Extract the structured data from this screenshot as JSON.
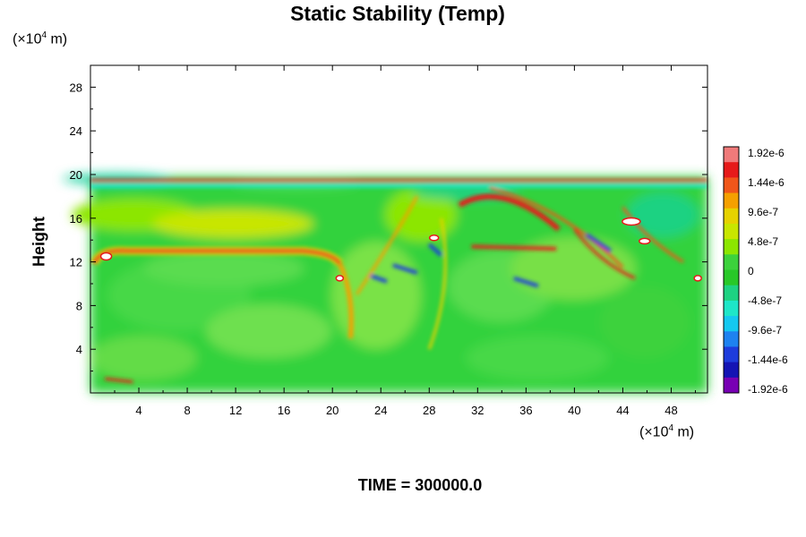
{
  "chart_data": {
    "type": "heatmap",
    "title": "Static Stability (Temp)",
    "ylabel": "Height",
    "xlabel": "",
    "x_unit": {
      "prefix": "(×10",
      "exp": "4",
      "suffix": " m)"
    },
    "y_unit": {
      "prefix": "(×10",
      "exp": "4",
      "suffix": " m)"
    },
    "xlim": [
      0,
      51
    ],
    "ylim": [
      0,
      30
    ],
    "x_ticks": [
      4,
      8,
      12,
      16,
      20,
      24,
      28,
      32,
      36,
      40,
      44,
      48
    ],
    "y_ticks": [
      4,
      8,
      12,
      16,
      20,
      24,
      28
    ],
    "data_top": 19.8,
    "colorbar": {
      "labels": [
        "1.92e-6",
        "1.44e-6",
        "9.6e-7",
        "4.8e-7",
        "0",
        "-4.8e-7",
        "-9.6e-7",
        "-1.44e-6",
        "-1.92e-6"
      ],
      "colors": [
        "#f07a7a",
        "#e61a1a",
        "#f0561a",
        "#f5a000",
        "#e6d200",
        "#c8e600",
        "#8ce600",
        "#3cd23c",
        "#28c828",
        "#1ed282",
        "#1ee6c8",
        "#14c8f0",
        "#1e82f0",
        "#1e3cdc",
        "#1414b4",
        "#7800b4"
      ]
    },
    "features": [
      {
        "desc": "stable layer top",
        "x": [
          0.2,
          20.5
        ],
        "y": 13.0,
        "sign": "positive"
      },
      {
        "desc": "tropopause band",
        "x": [
          0,
          51
        ],
        "y": 19.5,
        "sign": "mixed"
      }
    ]
  },
  "footer": {
    "time_label": "TIME = 300000.0"
  }
}
